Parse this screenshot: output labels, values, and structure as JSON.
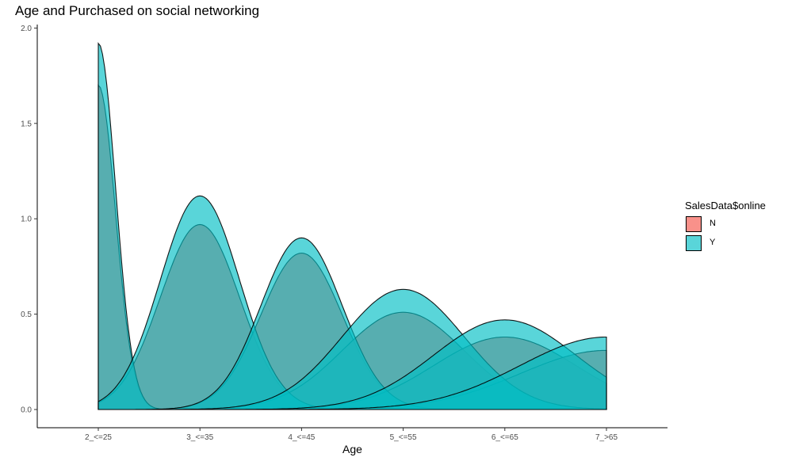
{
  "chart_data": {
    "type": "area",
    "subtype": "density-ridge",
    "title": "Age and Purchased on social networking",
    "xlabel": "Age",
    "ylabel": "",
    "categories": [
      "2_<=25",
      "3_<=35",
      "4_<=45",
      "5_<=55",
      "6_<=65",
      "7_>65"
    ],
    "ylim": [
      0,
      2.0
    ],
    "yticks": [
      0.0,
      0.5,
      1.0,
      1.5,
      2.0
    ],
    "ytick_labels": [
      "0.0",
      "0.5",
      "1.0",
      "1.5",
      "2.0"
    ],
    "grid": false,
    "legend": {
      "title": "SalesData$online",
      "position": "right"
    },
    "series": [
      {
        "name": "N",
        "color": "#F8766D",
        "curves": [
          {
            "peak_category": "2_<=25",
            "peak_value": 1.7
          },
          {
            "peak_category": "3_<=35",
            "peak_value": 0.97
          },
          {
            "peak_category": "4_<=45",
            "peak_value": 0.82
          },
          {
            "peak_category": "5_<=55",
            "peak_value": 0.51
          },
          {
            "peak_category": "6_<=65",
            "peak_value": 0.38
          },
          {
            "peak_category": "7_>65",
            "peak_value": 0.31
          }
        ]
      },
      {
        "name": "Y",
        "color": "#00BFC4",
        "curves": [
          {
            "peak_category": "2_<=25",
            "peak_value": 1.92
          },
          {
            "peak_category": "3_<=35",
            "peak_value": 1.12
          },
          {
            "peak_category": "4_<=45",
            "peak_value": 0.9
          },
          {
            "peak_category": "5_<=55",
            "peak_value": 0.63
          },
          {
            "peak_category": "6_<=65",
            "peak_value": 0.47
          },
          {
            "peak_category": "7_>65",
            "peak_value": 0.38
          }
        ]
      }
    ]
  }
}
